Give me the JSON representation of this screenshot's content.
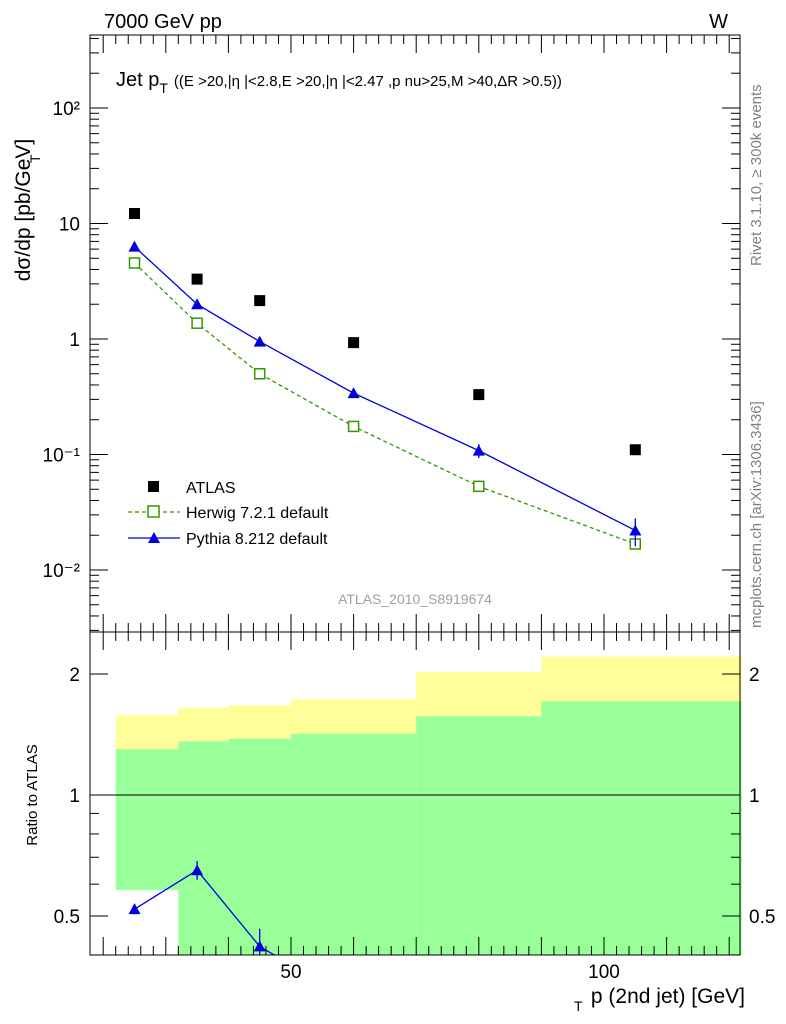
{
  "header": {
    "left": "7000 GeV pp",
    "right": "W"
  },
  "side_labels": {
    "rivet": "Rivet 3.1.10, ≥ 300k events",
    "mcplots": "mcplots.cern.ch [arXiv:1306.3436]"
  },
  "watermark": "ATLAS_2010_S8919674",
  "chart_data": [
    {
      "type": "scatter",
      "panel": "main",
      "title_main": "Jet p",
      "title_sub": "T",
      "title_cuts": "((E  >20,|η |<2.8,E  >20,|η |<2.47 ,p  nu>25,M >40,ΔR  >0.5))",
      "ylabel": "dσ/dp  [pb/GeV]",
      "ylabel_sub": "T",
      "yscale": "log",
      "ylim": [
        0.003,
        400
      ],
      "xlim": [
        20,
        125
      ],
      "ytick_labels": [
        "10⁻²",
        "10⁻¹",
        "1",
        "10",
        "10²"
      ],
      "legend_position": "lower-left",
      "series": [
        {
          "name": "ATLAS",
          "color": "#000000",
          "marker": "square",
          "x": [
            25,
            35,
            45,
            60,
            80,
            105
          ],
          "y": [
            12.2,
            3.3,
            2.15,
            0.93,
            0.33,
            0.11
          ]
        },
        {
          "name": "Herwig 7.2.1 default",
          "color": "#339900",
          "marker": "open-square",
          "line": "dashed",
          "x": [
            25,
            35,
            45,
            60,
            80,
            105
          ],
          "y": [
            4.55,
            1.37,
            0.5,
            0.175,
            0.053,
            0.0168
          ]
        },
        {
          "name": "Pythia 8.212 default",
          "color": "#0000dd",
          "marker": "triangle",
          "line": "solid",
          "x": [
            25,
            35,
            45,
            60,
            80,
            105
          ],
          "y": [
            6.3,
            2.0,
            0.95,
            0.34,
            0.108,
            0.022
          ],
          "yerr": [
            0.1,
            0.05,
            0.03,
            0.01,
            0.015,
            0.006
          ]
        }
      ]
    },
    {
      "type": "line",
      "panel": "ratio",
      "ylabel": "Ratio to ATLAS",
      "xlabel": "p (2nd jet) [GeV]",
      "xlabel_sub": "T",
      "yscale": "log",
      "ylim": [
        0.35,
        2.35
      ],
      "xlim": [
        20,
        125
      ],
      "xtick_labels": [
        "50",
        "100"
      ],
      "ytick_labels": [
        "0.5",
        "1",
        "2"
      ],
      "bands": {
        "edges": [
          22,
          32,
          40,
          50,
          70,
          90,
          122
        ],
        "yellow_low": [
          0.8,
          0.755,
          0.745,
          0.695,
          0.475,
          0.34
        ],
        "yellow_high": [
          1.58,
          1.65,
          1.67,
          1.73,
          2.02,
          2.21
        ],
        "green_low": [
          0.58,
          0.36,
          0.34,
          0.34,
          0.34,
          0.34
        ],
        "green_high": [
          1.3,
          1.36,
          1.38,
          1.42,
          1.57,
          1.71
        ]
      },
      "series": [
        {
          "name": "Pythia 8.212 default",
          "color": "#0000dd",
          "x": [
            25,
            35,
            45,
            55
          ],
          "y": [
            0.52,
            0.65,
            0.42,
            0.34
          ],
          "yerr": [
            0.015,
            0.035,
            0.045,
            0
          ]
        },
        {
          "name": "Herwig 7.2.1 default",
          "color": "#339900",
          "x": [
            35
          ],
          "y": [
            0.36
          ]
        }
      ]
    }
  ]
}
